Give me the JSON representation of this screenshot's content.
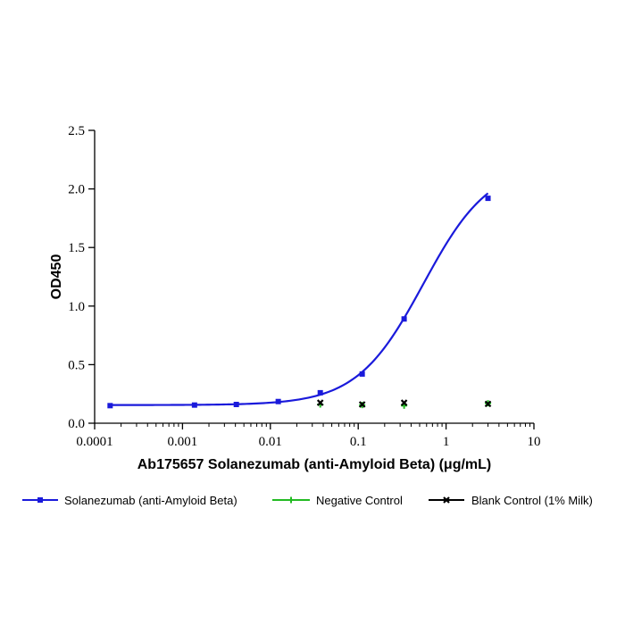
{
  "chart_data": {
    "type": "line",
    "x_scale": "log",
    "xlabel": "Ab175657 Solanezumab (anti-Amyloid Beta) (μg/mL)",
    "ylabel": "OD450",
    "xlim": [
      0.0001,
      10
    ],
    "ylim": [
      0,
      2.5
    ],
    "x_ticks": [
      0.0001,
      0.001,
      0.01,
      0.1,
      1,
      10
    ],
    "x_tick_labels": [
      "0.0001",
      "0.001",
      "0.01",
      "0.1",
      "1",
      "10"
    ],
    "y_ticks": [
      0,
      0.5,
      1.0,
      1.5,
      2.0,
      2.5
    ],
    "y_tick_labels": [
      "0.0",
      "0.5",
      "1.0",
      "1.5",
      "2.0",
      "2.5"
    ],
    "grid": false,
    "legend_position": "bottom",
    "series": [
      {
        "name": "Solanezumab (anti-Amyloid Beta)",
        "color": "#1a1adb",
        "marker": "square",
        "fit_curve": "4PL",
        "fit": {
          "bottom": 0.155,
          "top": 2.22,
          "ec50": 0.55,
          "hill": 1.15
        },
        "x": [
          0.00015,
          0.00137,
          0.0041,
          0.0123,
          0.037,
          0.111,
          0.333,
          3.0
        ],
        "y": [
          0.15,
          0.155,
          0.16,
          0.185,
          0.26,
          0.42,
          0.89,
          1.92
        ]
      },
      {
        "name": "Negative Control",
        "color": "#22bb22",
        "marker": "plus",
        "x": [
          0.037,
          0.111,
          0.333,
          3.0
        ],
        "y": [
          0.16,
          0.155,
          0.15,
          0.17
        ]
      },
      {
        "name": "Blank Control (1% Milk)",
        "color": "#000000",
        "marker": "x",
        "x": [
          0.037,
          0.111,
          0.333,
          3.0
        ],
        "y": [
          0.175,
          0.16,
          0.175,
          0.165
        ]
      }
    ]
  }
}
